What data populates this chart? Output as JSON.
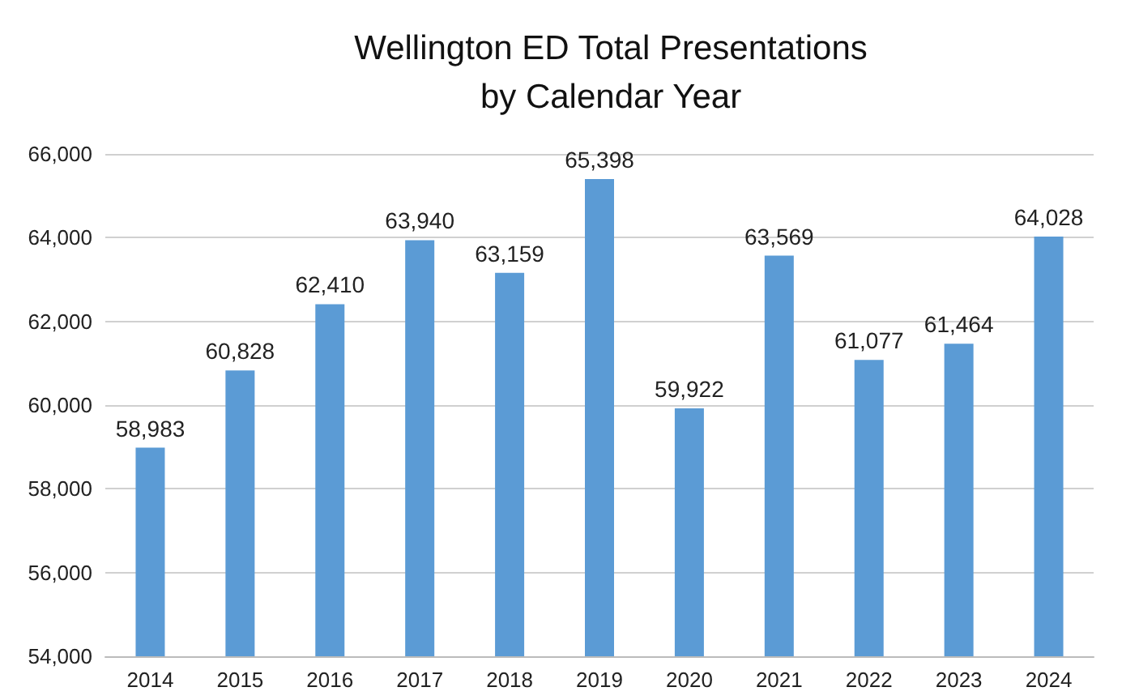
{
  "chart_data": {
    "type": "bar",
    "title": "Wellington ED Total Presentations\nby Calendar Year",
    "categories": [
      "2014",
      "2015",
      "2016",
      "2017",
      "2018",
      "2019",
      "2020",
      "2021",
      "2022",
      "2023",
      "2024"
    ],
    "values": [
      58983,
      60828,
      62410,
      63940,
      63159,
      65398,
      59922,
      63569,
      61077,
      61464,
      64028
    ],
    "value_labels": [
      "58,983",
      "60,828",
      "62,410",
      "63,940",
      "63,159",
      "65,398",
      "59,922",
      "63,569",
      "61,077",
      "61,464",
      "64,028"
    ],
    "color": "#5b9bd5",
    "ylim": [
      54000,
      66000
    ],
    "yticks": [
      {
        "value": 54000,
        "label": "54,000"
      },
      {
        "value": 56000,
        "label": "56,000"
      },
      {
        "value": 58000,
        "label": "58,000"
      },
      {
        "value": 60000,
        "label": "60,000"
      },
      {
        "value": 62000,
        "label": "62,000"
      },
      {
        "value": 64000,
        "label": "64,000"
      },
      {
        "value": 66000,
        "label": "66,000"
      }
    ],
    "grid": "y"
  }
}
